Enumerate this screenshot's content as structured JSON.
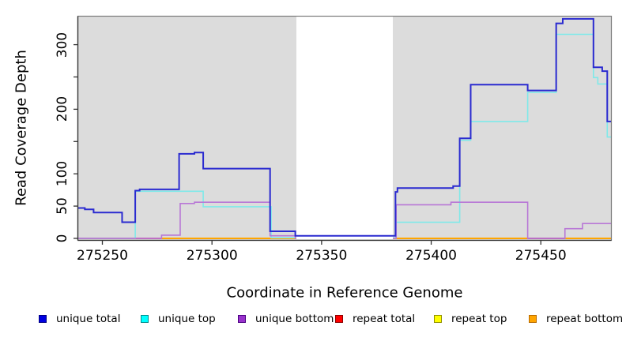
{
  "chart_data": {
    "type": "line",
    "subtype": "step-coverage",
    "title": "",
    "xlabel": "Coordinate in Reference Genome",
    "ylabel": "Read Coverage Depth",
    "xlim": [
      275239,
      275482
    ],
    "ylim": [
      0,
      343
    ],
    "grid": false,
    "plot_background": "#DCDCDC",
    "page_background": "#FFFFFF",
    "x_ticks": [
      275250,
      275300,
      275350,
      275400,
      275450
    ],
    "y_ticks": [
      {
        "value": 0,
        "label": "0"
      },
      {
        "value": 50,
        "label": "50"
      },
      {
        "value": 100,
        "label": "100"
      },
      {
        "value": 150,
        "label": ""
      },
      {
        "value": 200,
        "label": "200"
      },
      {
        "value": 250,
        "label": ""
      },
      {
        "value": 300,
        "label": "300"
      }
    ],
    "masked_region": {
      "from": 275338.5,
      "to": 275382.5,
      "color": "#FFFFFF"
    },
    "series": [
      {
        "name": "unique total",
        "color": "#2A2AD0",
        "width": 2,
        "steps": [
          [
            275239,
            47
          ],
          [
            275242,
            45
          ],
          [
            275246,
            40
          ],
          [
            275259,
            25
          ],
          [
            275265,
            74
          ],
          [
            275267,
            76
          ],
          [
            275285,
            131
          ],
          [
            275292,
            133
          ],
          [
            275296,
            108
          ],
          [
            275326.5,
            11
          ],
          [
            275338,
            4
          ],
          [
            275383.7,
            72
          ],
          [
            275384.6,
            78
          ],
          [
            275410,
            81
          ],
          [
            275413,
            155
          ],
          [
            275418,
            238
          ],
          [
            275444,
            229
          ],
          [
            275457,
            333
          ],
          [
            275460,
            340
          ],
          [
            275474,
            265
          ],
          [
            275478,
            259
          ],
          [
            275480.3,
            181
          ]
        ]
      },
      {
        "name": "unique top",
        "color": "#7FE9E9",
        "width": 1.6,
        "steps": [
          [
            275239,
            0
          ],
          [
            275265,
            73
          ],
          [
            275296,
            49
          ],
          [
            275327,
            1
          ],
          [
            275383.9,
            25
          ],
          [
            275413,
            152
          ],
          [
            275418,
            181
          ],
          [
            275444,
            226
          ],
          [
            275457,
            316
          ],
          [
            275474,
            249
          ],
          [
            275476,
            239
          ],
          [
            275480.3,
            157
          ]
        ]
      },
      {
        "name": "unique bottom",
        "color": "#B877D6",
        "width": 1.6,
        "steps": [
          [
            275239,
            0
          ],
          [
            275277,
            5
          ],
          [
            275285.5,
            54
          ],
          [
            275292,
            56
          ],
          [
            275326.5,
            4
          ],
          [
            275338,
            0
          ],
          [
            275384,
            52
          ],
          [
            275409,
            56
          ],
          [
            275444,
            0
          ],
          [
            275461,
            15
          ],
          [
            275469,
            23
          ]
        ]
      },
      {
        "name": "repeat total",
        "color": "#DC143C",
        "width": 1.6,
        "steps": [
          [
            275239,
            0
          ]
        ]
      },
      {
        "name": "repeat top",
        "color": "#FFFF00",
        "width": 1.6,
        "steps": [
          [
            275239,
            0
          ]
        ]
      },
      {
        "name": "repeat bottom",
        "color": "#FFA500",
        "width": 2,
        "steps": [
          [
            275239,
            0
          ]
        ]
      }
    ],
    "baseline_overlays": [
      {
        "from": 275239,
        "to": 275277,
        "value": 0,
        "color": "#D05A8C"
      },
      {
        "from": 275444,
        "to": 275461,
        "value": 0,
        "color": "#C25890"
      }
    ],
    "legend": [
      {
        "label": "unique total",
        "fill": "#0000E0",
        "border": "#000080"
      },
      {
        "label": "unique top",
        "fill": "#00FFFF",
        "border": "#008B8B"
      },
      {
        "label": "unique bottom",
        "fill": "#9932CC",
        "border": "#4B0082"
      },
      {
        "label": "repeat total",
        "fill": "#FF0000",
        "border": "#8B0000"
      },
      {
        "label": "repeat top",
        "fill": "#FFFF00",
        "border": "#909000"
      },
      {
        "label": "repeat bottom",
        "fill": "#FFA500",
        "border": "#B86B00"
      }
    ]
  }
}
